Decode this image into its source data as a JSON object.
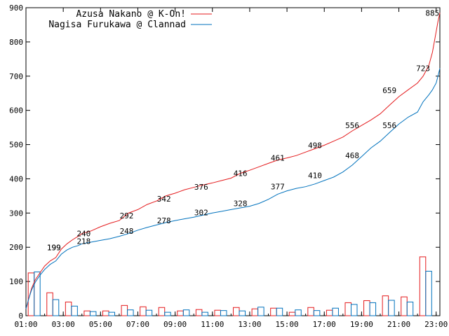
{
  "chart_data": {
    "type": "line",
    "xlim": [
      1,
      23.2
    ],
    "ylim": [
      0,
      900
    ],
    "y_ticks": [
      0,
      100,
      200,
      300,
      400,
      500,
      600,
      700,
      800,
      900
    ],
    "x_tick_labels": [
      "01:00",
      "03:00",
      "05:00",
      "07:00",
      "09:00",
      "11:00",
      "13:00",
      "15:00",
      "17:00",
      "19:00",
      "21:00",
      "23:00"
    ],
    "x_tick_hours": [
      1,
      3,
      5,
      7,
      9,
      11,
      13,
      15,
      17,
      19,
      21,
      23
    ],
    "grid": false,
    "legend_position": "top-left",
    "series": [
      {
        "name": "Azusa Nakano @ K-On!",
        "color": "#e41a1c",
        "cumulative": {
          "x": [
            1.0,
            1.15,
            1.3,
            1.5,
            1.75,
            2.0,
            2.3,
            2.6,
            2.9,
            3.2,
            3.5,
            3.8,
            4.0,
            4.5,
            5.0,
            5.5,
            6.0,
            6.5,
            7.0,
            7.5,
            8.0,
            8.5,
            9.0,
            9.5,
            10.0,
            10.5,
            11.0,
            11.5,
            12.0,
            12.5,
            13.0,
            13.5,
            14.0,
            14.5,
            15.0,
            15.5,
            16.0,
            16.5,
            17.0,
            17.5,
            18.0,
            18.5,
            19.0,
            19.5,
            20.0,
            20.5,
            21.0,
            21.5,
            22.0,
            22.3,
            22.6,
            22.8,
            23.0,
            23.1,
            23.2
          ],
          "y": [
            20,
            50,
            80,
            105,
            125,
            145,
            160,
            170,
            195,
            210,
            222,
            232,
            240,
            248,
            260,
            270,
            278,
            300,
            310,
            325,
            335,
            350,
            358,
            368,
            375,
            382,
            388,
            395,
            402,
            416,
            425,
            435,
            445,
            455,
            461,
            468,
            478,
            488,
            498,
            510,
            522,
            540,
            556,
            572,
            590,
            615,
            640,
            660,
            680,
            700,
            730,
            770,
            830,
            860,
            885
          ]
        },
        "hourly_bars": [
          125,
          67,
          40,
          14,
          14,
          30,
          26,
          24,
          14,
          18,
          16,
          24,
          20,
          22,
          10,
          24,
          16,
          38,
          44,
          58,
          55,
          172
        ],
        "point_labels": [
          {
            "x": 2.5,
            "y": 199,
            "text": "199"
          },
          {
            "x": 4.1,
            "y": 240,
            "text": "240"
          },
          {
            "x": 6.4,
            "y": 292,
            "text": "292"
          },
          {
            "x": 8.4,
            "y": 342,
            "text": "342"
          },
          {
            "x": 10.4,
            "y": 376,
            "text": "376"
          },
          {
            "x": 12.5,
            "y": 416,
            "text": "416"
          },
          {
            "x": 14.5,
            "y": 461,
            "text": "461"
          },
          {
            "x": 16.5,
            "y": 498,
            "text": "498"
          },
          {
            "x": 18.5,
            "y": 556,
            "text": "556"
          },
          {
            "x": 20.5,
            "y": 659,
            "text": "659"
          },
          {
            "x": 22.3,
            "y": 723,
            "text": "723"
          },
          {
            "x": 22.8,
            "y": 885,
            "text": "885"
          }
        ]
      },
      {
        "name": "Nagisa Furukawa @ Clannad",
        "color": "#0072bd",
        "cumulative": {
          "x": [
            1.0,
            1.15,
            1.3,
            1.5,
            1.75,
            2.0,
            2.3,
            2.6,
            2.9,
            3.2,
            3.5,
            3.8,
            4.0,
            4.5,
            5.0,
            5.5,
            6.0,
            6.5,
            7.0,
            7.5,
            8.0,
            8.5,
            9.0,
            9.5,
            10.0,
            10.5,
            11.0,
            11.5,
            12.0,
            12.5,
            13.0,
            13.5,
            14.0,
            14.5,
            15.0,
            15.5,
            16.0,
            16.5,
            17.0,
            17.5,
            18.0,
            18.5,
            19.0,
            19.5,
            20.0,
            20.5,
            21.0,
            21.5,
            22.0,
            22.3,
            22.6,
            22.8,
            23.0,
            23.1,
            23.2
          ],
          "y": [
            20,
            50,
            75,
            98,
            118,
            135,
            150,
            160,
            180,
            192,
            200,
            205,
            210,
            215,
            220,
            225,
            232,
            240,
            250,
            258,
            265,
            272,
            278,
            283,
            288,
            294,
            300,
            305,
            310,
            315,
            320,
            328,
            340,
            355,
            365,
            372,
            377,
            385,
            395,
            405,
            420,
            440,
            465,
            490,
            510,
            535,
            560,
            580,
            595,
            625,
            645,
            660,
            680,
            700,
            723
          ]
        },
        "hourly_bars": [
          128,
          47,
          28,
          12,
          10,
          17,
          16,
          10,
          17,
          10,
          15,
          14,
          25,
          22,
          17,
          15,
          22,
          33,
          38,
          45,
          40,
          130
        ],
        "point_labels": [
          {
            "x": 2.5,
            "y": 199,
            "text": "199"
          },
          {
            "x": 4.1,
            "y": 218,
            "text": "218"
          },
          {
            "x": 6.4,
            "y": 248,
            "text": "248"
          },
          {
            "x": 8.4,
            "y": 278,
            "text": "278"
          },
          {
            "x": 10.4,
            "y": 302,
            "text": "302"
          },
          {
            "x": 12.5,
            "y": 328,
            "text": "328"
          },
          {
            "x": 14.5,
            "y": 377,
            "text": "377"
          },
          {
            "x": 16.5,
            "y": 410,
            "text": "410"
          },
          {
            "x": 18.5,
            "y": 468,
            "text": "468"
          },
          {
            "x": 20.5,
            "y": 556,
            "text": "556"
          }
        ]
      }
    ]
  }
}
